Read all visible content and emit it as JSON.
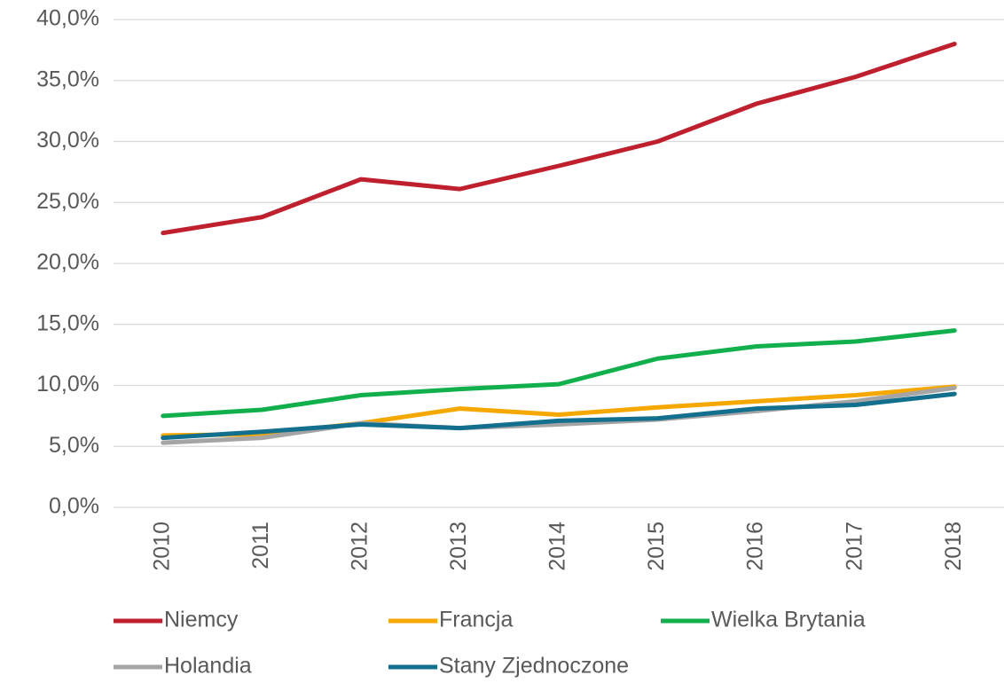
{
  "chart_data": {
    "type": "line",
    "categories": [
      "2010",
      "2011",
      "2012",
      "2013",
      "2014",
      "2015",
      "2016",
      "2017",
      "2018"
    ],
    "series": [
      {
        "name": "Niemcy",
        "color": "#c0202e",
        "values": [
          22.5,
          23.8,
          26.9,
          26.1,
          28.0,
          30.0,
          33.1,
          35.3,
          38.0
        ]
      },
      {
        "name": "Francja",
        "color": "#f5a800",
        "values": [
          5.9,
          6.0,
          6.9,
          8.1,
          7.6,
          8.2,
          8.7,
          9.2,
          9.9
        ]
      },
      {
        "name": "Wielka Brytania",
        "color": "#12b04c",
        "values": [
          7.5,
          8.0,
          9.2,
          9.7,
          10.1,
          12.2,
          13.2,
          13.6,
          14.5
        ]
      },
      {
        "name": "Holandia",
        "color": "#a5a5a5",
        "values": [
          5.3,
          5.7,
          6.9,
          6.5,
          6.8,
          7.2,
          7.9,
          8.7,
          9.8
        ]
      },
      {
        "name": "Stany Zjednoczone",
        "color": "#126f8e",
        "values": [
          5.7,
          6.2,
          6.8,
          6.5,
          7.1,
          7.3,
          8.1,
          8.4,
          9.3
        ]
      }
    ],
    "ylim": [
      0,
      40
    ],
    "yticks": [
      {
        "value": 0,
        "label": "0,0%"
      },
      {
        "value": 5,
        "label": "5,0%"
      },
      {
        "value": 10,
        "label": "10,0%"
      },
      {
        "value": 15,
        "label": "15,0%"
      },
      {
        "value": 20,
        "label": "20,0%"
      },
      {
        "value": 25,
        "label": "25,0%"
      },
      {
        "value": 30,
        "label": "30,0%"
      },
      {
        "value": 35,
        "label": "35,0%"
      },
      {
        "value": 40,
        "label": "40,0%"
      }
    ],
    "grid": true,
    "legend": "bottom"
  }
}
